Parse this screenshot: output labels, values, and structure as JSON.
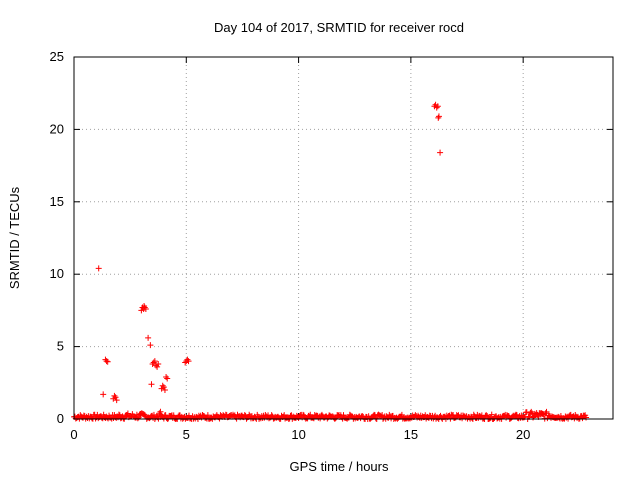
{
  "chart_data": {
    "type": "scatter",
    "title": "Day 104 of 2017, SRMTID for receiver rocd",
    "xlabel": "GPS time / hours",
    "ylabel": "SRMTID / TECUs",
    "xlim": [
      0,
      24
    ],
    "ylim": [
      0,
      25
    ],
    "xticks": [
      "0",
      "5",
      "10",
      "15",
      "20"
    ],
    "yticks": [
      "0",
      "5",
      "10",
      "15",
      "20",
      "25"
    ],
    "grid": true,
    "marker": "+",
    "color": "#ff0000",
    "baseline": {
      "description_range_hours": [
        0,
        22.8
      ],
      "typical_value_range": [
        0.0,
        0.3
      ],
      "bump_max_near_21h": 0.5
    },
    "series": [
      {
        "x": [
          1.1,
          1.3,
          1.4,
          1.45,
          1.5,
          1.75,
          1.8,
          1.85,
          1.9,
          3.0,
          3.05,
          3.1,
          3.12,
          3.15,
          3.2,
          3.3,
          3.4,
          3.45,
          3.5,
          3.55,
          3.6,
          3.65,
          3.7,
          3.75,
          3.8,
          3.85,
          3.9,
          3.95,
          4.0,
          4.05,
          4.1,
          4.15,
          4.95,
          5.0,
          5.05,
          5.1,
          16.05,
          16.1,
          16.15,
          16.2,
          16.22,
          16.25,
          16.3
        ],
        "y": [
          10.4,
          1.7,
          4.1,
          4.0,
          3.95,
          1.4,
          1.6,
          1.5,
          1.3,
          7.5,
          7.7,
          7.6,
          7.8,
          7.7,
          7.6,
          5.6,
          5.1,
          2.4,
          3.8,
          3.9,
          4.0,
          3.7,
          3.6,
          3.8,
          0.4,
          0.5,
          2.1,
          2.3,
          2.2,
          2.0,
          2.9,
          2.8,
          3.9,
          4.0,
          4.1,
          4.0,
          21.6,
          21.7,
          21.5,
          21.6,
          20.8,
          20.9,
          18.4
        ]
      }
    ]
  }
}
